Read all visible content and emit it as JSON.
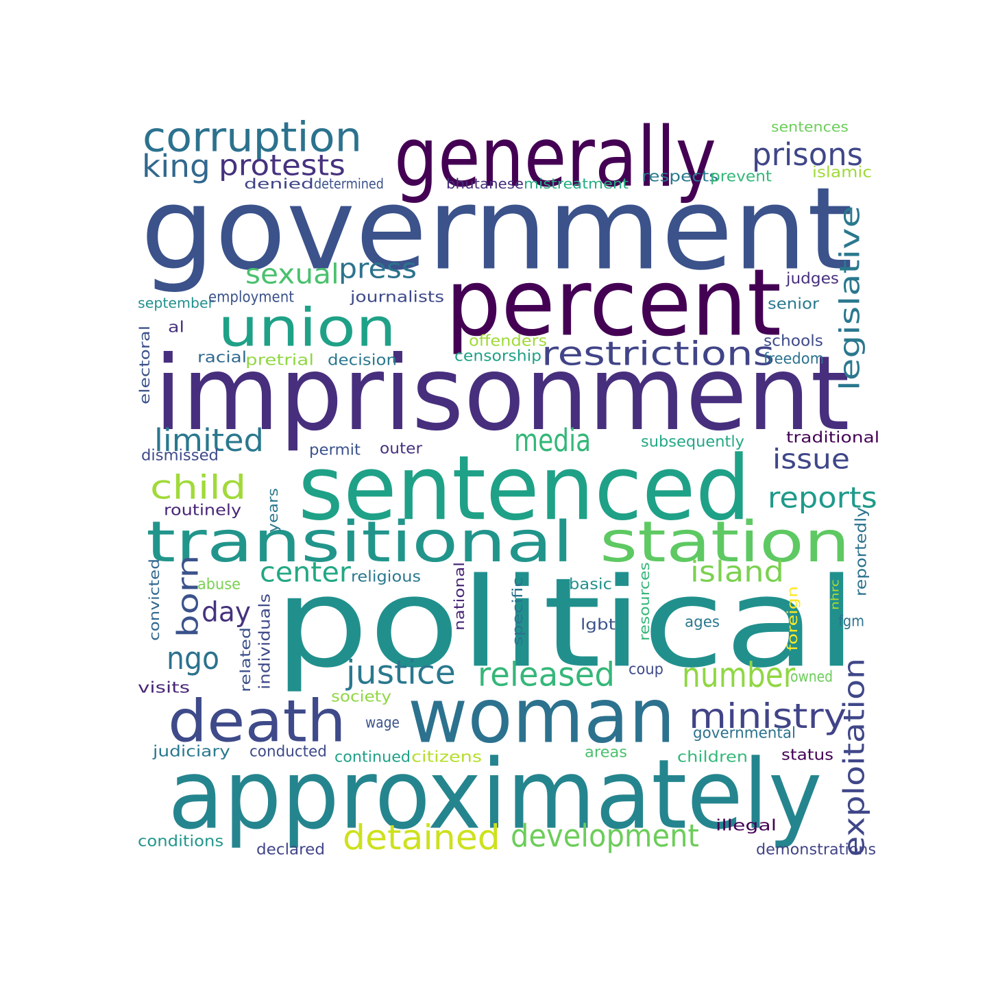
{
  "words": [
    {
      "text": "government",
      "color": "#3b528b"
    },
    {
      "text": "imprisonment",
      "color": "#472f7d"
    },
    {
      "text": "political",
      "color": "#21908d"
    },
    {
      "text": "sentenced",
      "color": "#1fa187"
    },
    {
      "text": "approximately",
      "color": "#25858e"
    },
    {
      "text": "woman",
      "color": "#2c728e"
    },
    {
      "text": "percent",
      "color": "#440154"
    },
    {
      "text": "generally",
      "color": "#440154"
    },
    {
      "text": "transitional",
      "color": "#22958b"
    },
    {
      "text": "station",
      "color": "#5ec962"
    },
    {
      "text": "union",
      "color": "#1fa187"
    },
    {
      "text": "death",
      "color": "#3e4a89"
    },
    {
      "text": "corruption",
      "color": "#2c728e"
    },
    {
      "text": "restrictions",
      "color": "#414487"
    },
    {
      "text": "legislative",
      "color": "#2a788e"
    },
    {
      "text": "exploitation",
      "color": "#3f4788"
    },
    {
      "text": "detained",
      "color": "#cde11d"
    },
    {
      "text": "development",
      "color": "#6ccd5a"
    },
    {
      "text": "number",
      "color": "#90d743"
    },
    {
      "text": "released",
      "color": "#35b779"
    },
    {
      "text": "justice",
      "color": "#2a788e"
    },
    {
      "text": "ministry",
      "color": "#414487"
    },
    {
      "text": "born",
      "color": "#3b528b"
    },
    {
      "text": "child",
      "color": "#a0da39"
    },
    {
      "text": "prisons",
      "color": "#3f4788"
    },
    {
      "text": "protests",
      "color": "#46327e"
    },
    {
      "text": "king",
      "color": "#31688e"
    },
    {
      "text": "media",
      "color": "#35b779"
    },
    {
      "text": "limited",
      "color": "#2a788e"
    },
    {
      "text": "press",
      "color": "#2c728e"
    },
    {
      "text": "sexual",
      "color": "#4ac16d"
    },
    {
      "text": "island",
      "color": "#7ad151"
    },
    {
      "text": "reports",
      "color": "#1f9a8a"
    },
    {
      "text": "issue",
      "color": "#3f4788"
    },
    {
      "text": "center",
      "color": "#22a884"
    },
    {
      "text": "ngo",
      "color": "#2c728e"
    },
    {
      "text": "day",
      "color": "#46327e"
    },
    {
      "text": "sentences",
      "color": "#6ccd5a"
    },
    {
      "text": "islamic",
      "color": "#a0da39"
    },
    {
      "text": "denied",
      "color": "#414487"
    },
    {
      "text": "determined",
      "color": "#3b528b"
    },
    {
      "text": "bhutanese",
      "color": "#472f7d"
    },
    {
      "text": "mistreatment",
      "color": "#25ac82"
    },
    {
      "text": "respects",
      "color": "#2a788e"
    },
    {
      "text": "prevent",
      "color": "#35b779"
    },
    {
      "text": "judges",
      "color": "#472f7d"
    },
    {
      "text": "september",
      "color": "#21908d"
    },
    {
      "text": "employment",
      "color": "#3b528b"
    },
    {
      "text": "journalists",
      "color": "#3e4a89"
    },
    {
      "text": "senior",
      "color": "#2a788e"
    },
    {
      "text": "al",
      "color": "#46327e"
    },
    {
      "text": "offenders",
      "color": "#a0da39"
    },
    {
      "text": "schools",
      "color": "#3e4a89"
    },
    {
      "text": "freedom",
      "color": "#2c728e"
    },
    {
      "text": "electoral",
      "color": "#3b528b"
    },
    {
      "text": "racial",
      "color": "#31688e"
    },
    {
      "text": "pretrial",
      "color": "#90d743"
    },
    {
      "text": "decision",
      "color": "#2a788e"
    },
    {
      "text": "censorship",
      "color": "#1fa187"
    },
    {
      "text": "dismissed",
      "color": "#3e4a89"
    },
    {
      "text": "permit",
      "color": "#3b528b"
    },
    {
      "text": "outer",
      "color": "#46327e"
    },
    {
      "text": "subsequently",
      "color": "#22a884"
    },
    {
      "text": "traditional",
      "color": "#440154"
    },
    {
      "text": "routinely",
      "color": "#482576"
    },
    {
      "text": "years",
      "color": "#2a788e"
    },
    {
      "text": "reportedly",
      "color": "#2c728e"
    },
    {
      "text": "convicted",
      "color": "#31688e"
    },
    {
      "text": "abuse",
      "color": "#7ad151"
    },
    {
      "text": "religious",
      "color": "#2a788e"
    },
    {
      "text": "national",
      "color": "#482576"
    },
    {
      "text": "specific",
      "color": "#2c728e"
    },
    {
      "text": "basic",
      "color": "#21908d"
    },
    {
      "text": "resources",
      "color": "#35b779"
    },
    {
      "text": "nhrc",
      "color": "#b5de2b"
    },
    {
      "text": "individuals",
      "color": "#3e4a89"
    },
    {
      "text": "lgbt",
      "color": "#3b528b"
    },
    {
      "text": "ages",
      "color": "#2a788e"
    },
    {
      "text": "foreign",
      "color": "#fde725"
    },
    {
      "text": "fgm",
      "color": "#2c728e"
    },
    {
      "text": "related",
      "color": "#3b528b"
    },
    {
      "text": "coup",
      "color": "#3e4a89"
    },
    {
      "text": "owned",
      "color": "#6ccd5a"
    },
    {
      "text": "visits",
      "color": "#482576"
    },
    {
      "text": "society",
      "color": "#90d743"
    },
    {
      "text": "wage",
      "color": "#3b528b"
    },
    {
      "text": "governmental",
      "color": "#2c728e"
    },
    {
      "text": "judiciary",
      "color": "#2a788e"
    },
    {
      "text": "conducted",
      "color": "#3e4a89"
    },
    {
      "text": "continued",
      "color": "#1fa187"
    },
    {
      "text": "citizens",
      "color": "#b5de2b"
    },
    {
      "text": "areas",
      "color": "#4ac16d"
    },
    {
      "text": "children",
      "color": "#35b779"
    },
    {
      "text": "status",
      "color": "#440154"
    },
    {
      "text": "illegal",
      "color": "#440154"
    },
    {
      "text": "conditions",
      "color": "#22958b"
    },
    {
      "text": "declared",
      "color": "#414487"
    },
    {
      "text": "demonstrations",
      "color": "#414487"
    }
  ]
}
